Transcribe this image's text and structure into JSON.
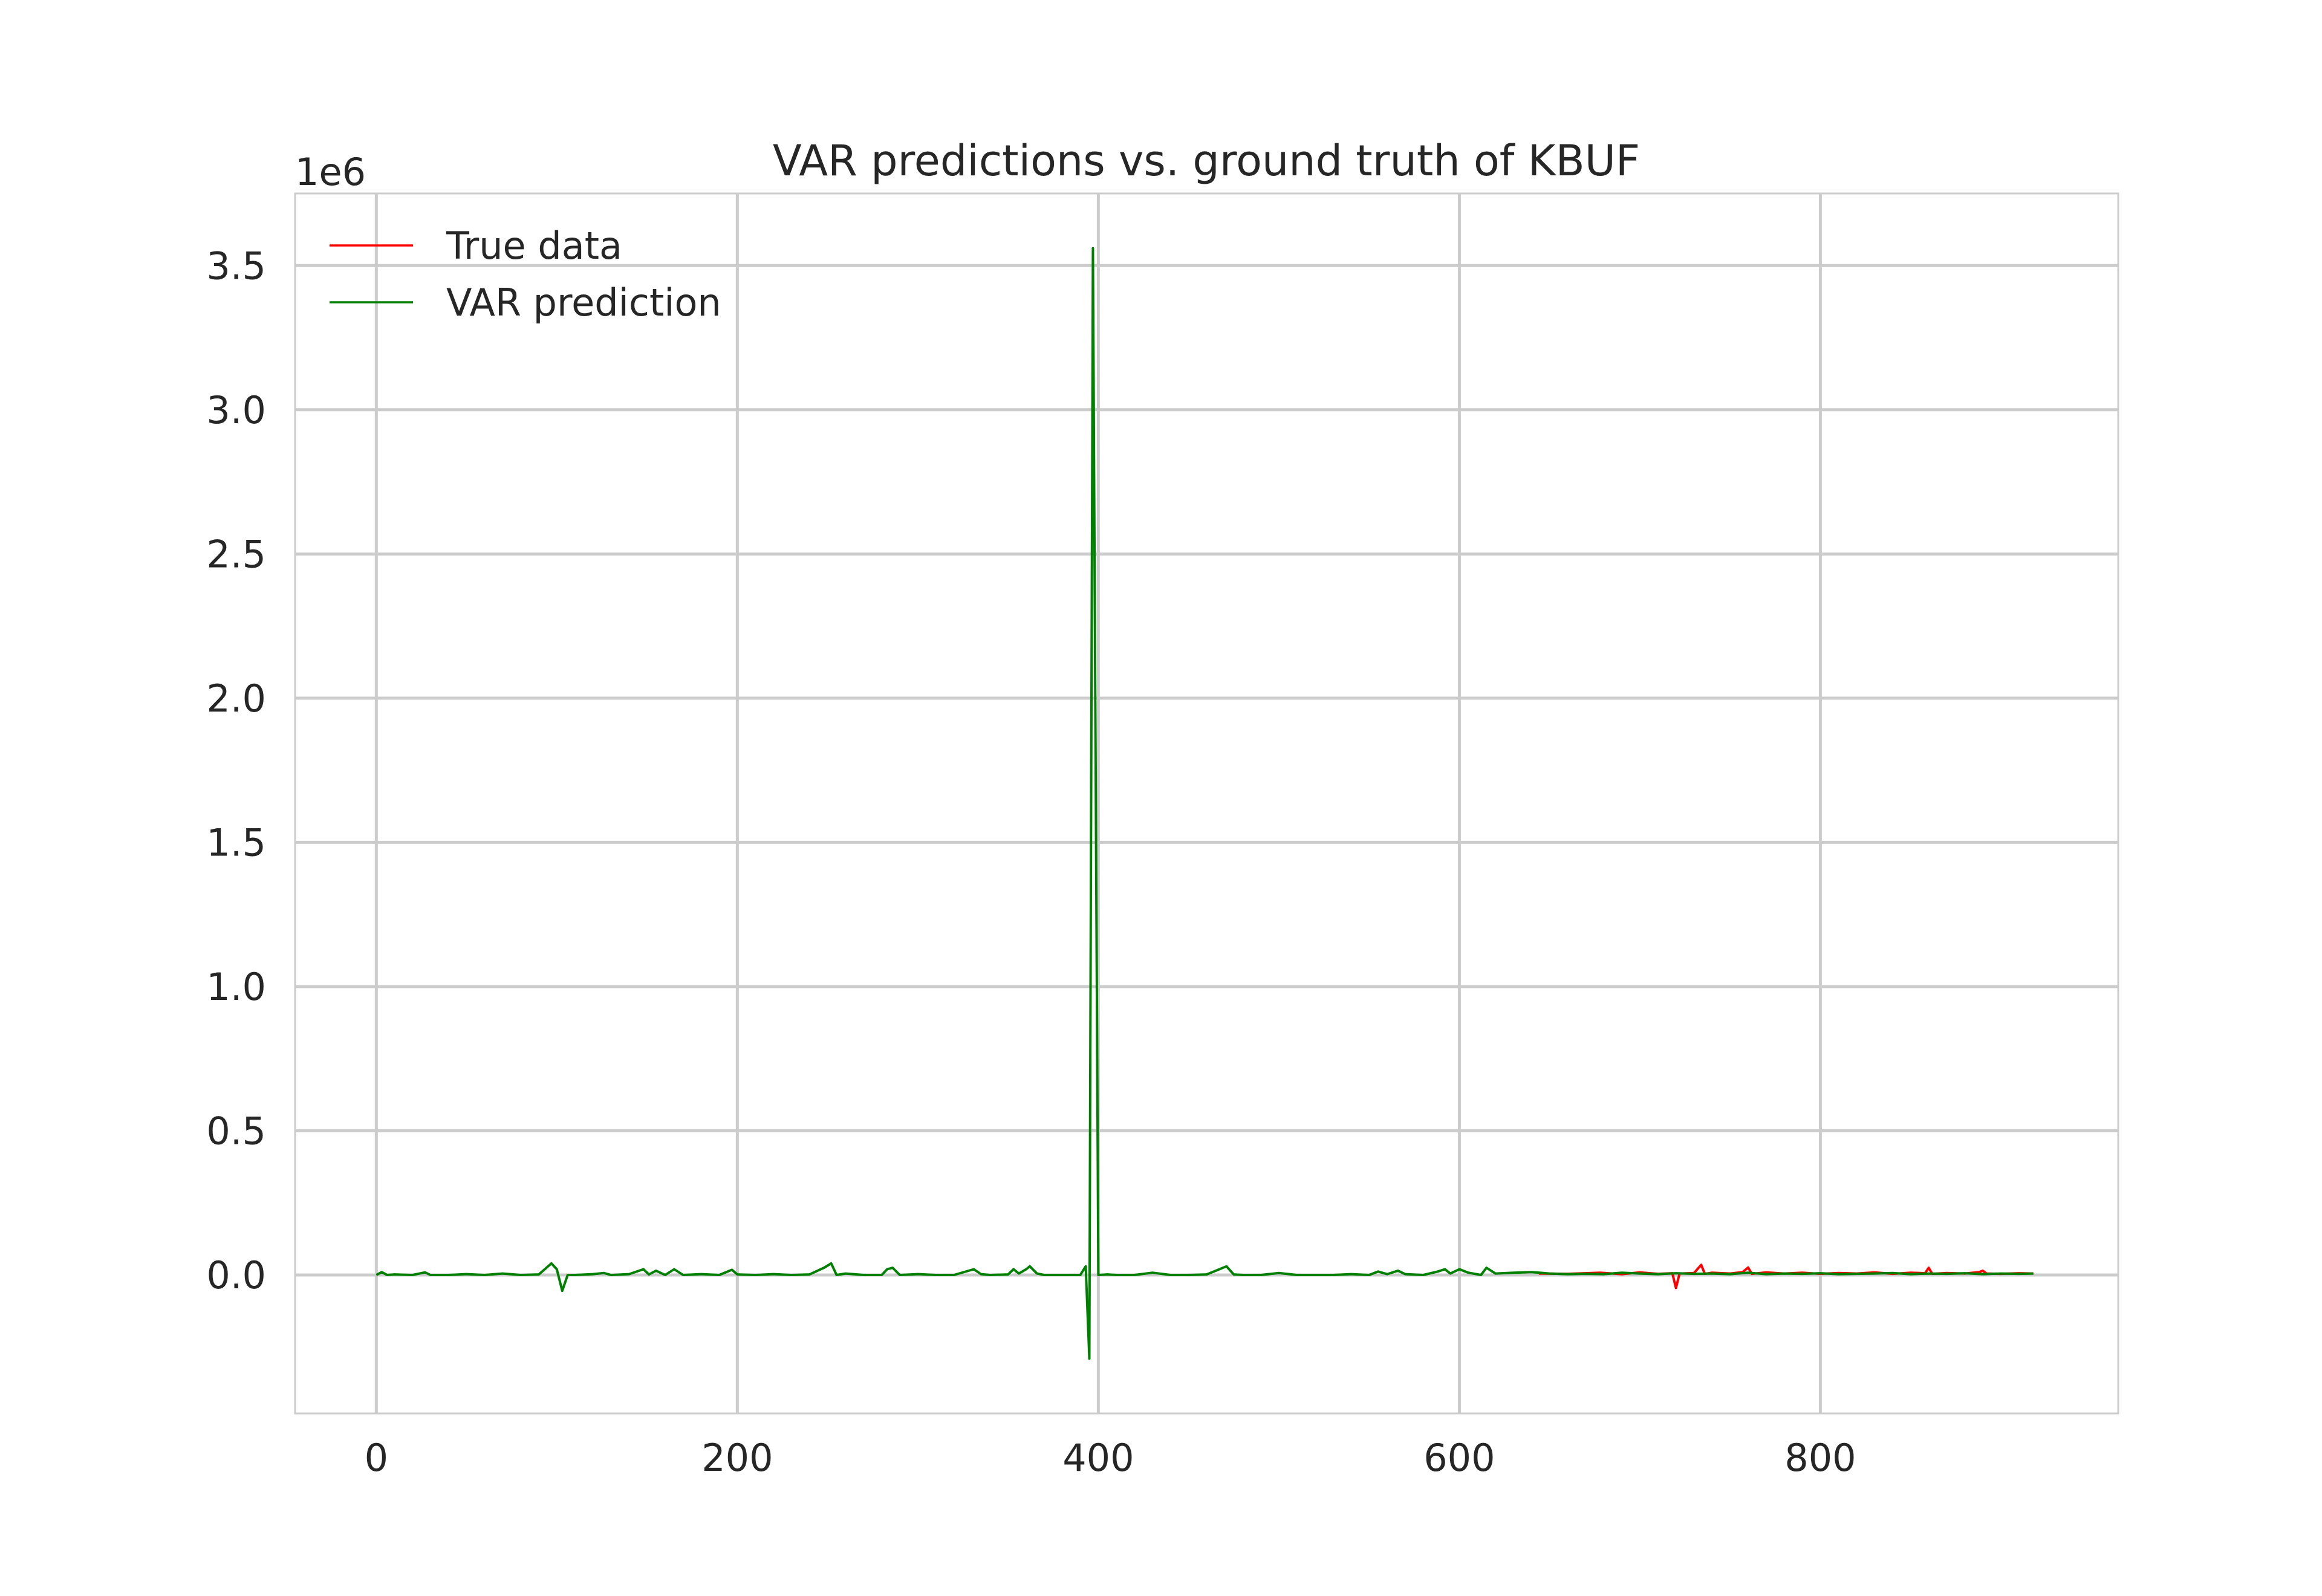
{
  "chart_data": {
    "type": "line",
    "title": "VAR predictions vs. ground truth of KBUF",
    "xlabel": "",
    "ylabel": "",
    "y_offset_label": "1e6",
    "xlim": [
      -45,
      965
    ],
    "ylim": [
      -480000,
      3750000
    ],
    "x_ticks": [
      0,
      200,
      400,
      600,
      800
    ],
    "x_tick_labels": [
      "0",
      "200",
      "400",
      "600",
      "800"
    ],
    "y_ticks": [
      0,
      500000,
      1000000,
      1500000,
      2000000,
      2500000,
      3000000,
      3500000
    ],
    "y_tick_labels": [
      "0.0",
      "0.5",
      "1.0",
      "1.5",
      "2.0",
      "2.5",
      "3.0",
      "3.5"
    ],
    "grid": true,
    "legend_position": "top-left",
    "series": [
      {
        "name": "True data",
        "color": "#ff0000",
        "x": [
          644,
          660,
          678,
          690,
          700,
          710,
          718,
          720,
          722,
          730,
          734,
          736,
          740,
          750,
          757,
          760,
          762,
          770,
          780,
          790,
          800,
          810,
          820,
          830,
          840,
          850,
          858,
          860,
          862,
          870,
          880,
          888,
          890,
          892,
          900,
          910,
          918
        ],
        "y": [
          5000,
          4000,
          8000,
          3000,
          9000,
          4000,
          6000,
          -45000,
          5000,
          7000,
          35000,
          4000,
          8000,
          5000,
          10000,
          26000,
          4000,
          9000,
          5000,
          8000,
          4000,
          7000,
          5000,
          9000,
          4000,
          8000,
          6000,
          25000,
          4000,
          7000,
          5000,
          10000,
          15000,
          5000,
          4000,
          6000,
          5000
        ]
      },
      {
        "name": "VAR prediction",
        "color": "#008000",
        "x": [
          0,
          3,
          6,
          10,
          20,
          27,
          30,
          40,
          50,
          60,
          70,
          80,
          90,
          97,
          100,
          103,
          106,
          110,
          120,
          126,
          130,
          140,
          148,
          151,
          155,
          160,
          165,
          170,
          180,
          190,
          197,
          200,
          210,
          220,
          230,
          240,
          248,
          252,
          255,
          260,
          270,
          280,
          283,
          286,
          290,
          300,
          310,
          320,
          331,
          335,
          340,
          350,
          353,
          356,
          360,
          362,
          366,
          370,
          380,
          390,
          393,
          395,
          397,
          400,
          405,
          410,
          420,
          430,
          440,
          450,
          460,
          471,
          475,
          480,
          490,
          500,
          510,
          520,
          530,
          540,
          550,
          555,
          560,
          566,
          570,
          580,
          588,
          592,
          595,
          600,
          605,
          612,
          615,
          620,
          630,
          640,
          650,
          660,
          670,
          680,
          690,
          700,
          710,
          720,
          730,
          740,
          750,
          760,
          770,
          780,
          790,
          800,
          810,
          820,
          830,
          840,
          850,
          860,
          870,
          880,
          890,
          900,
          910,
          918
        ],
        "y": [
          0,
          10000,
          0,
          2000,
          0,
          9000,
          0,
          0,
          3000,
          0,
          5000,
          0,
          2000,
          40000,
          20000,
          -55000,
          0,
          0,
          3000,
          7000,
          0,
          3000,
          20000,
          2000,
          15000,
          0,
          20000,
          0,
          3000,
          0,
          18000,
          2000,
          0,
          3000,
          0,
          2000,
          25000,
          40000,
          0,
          5000,
          0,
          0,
          20000,
          25000,
          0,
          3000,
          0,
          0,
          20000,
          3000,
          0,
          2000,
          20000,
          5000,
          20000,
          30000,
          5000,
          0,
          0,
          0,
          30000,
          -290000,
          3560000,
          0,
          2000,
          0,
          0,
          8000,
          0,
          0,
          2000,
          30000,
          2000,
          0,
          0,
          7000,
          0,
          0,
          0,
          3000,
          0,
          12000,
          3000,
          15000,
          3000,
          0,
          12000,
          20000,
          5000,
          20000,
          8000,
          0,
          25000,
          5000,
          8000,
          10000,
          5000,
          3000,
          4000,
          3000,
          8000,
          5000,
          3000,
          6000,
          4000,
          5000,
          3000,
          8000,
          3000,
          5000,
          4000,
          6000,
          3000,
          4000,
          5000,
          7000,
          3000,
          5000,
          4000,
          6000,
          3000,
          5000,
          4000,
          5000
        ]
      }
    ]
  }
}
